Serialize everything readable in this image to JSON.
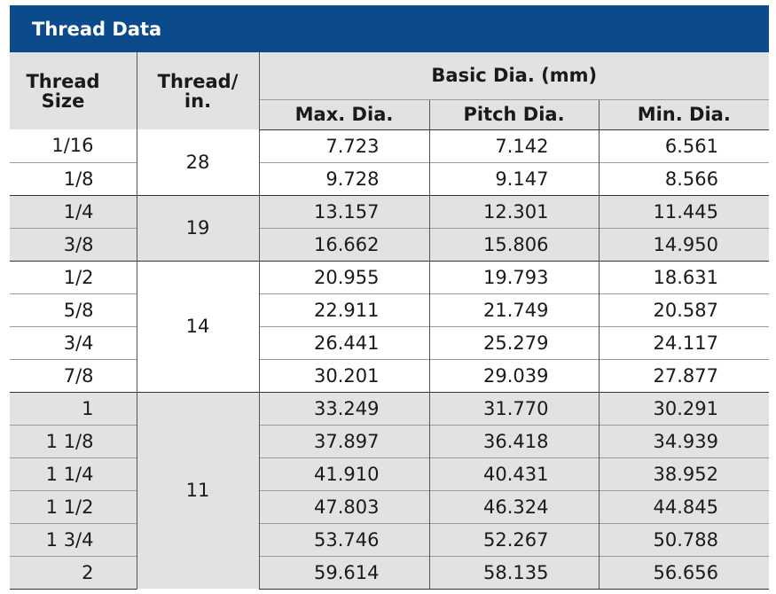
{
  "title": "Thread Data",
  "headers": {
    "thread_size": "Thread Size",
    "thread_per_in": "Thread/ in.",
    "basic_dia": "Basic Dia. (mm)",
    "max_dia": "Max. Dia.",
    "pitch_dia": "Pitch Dia.",
    "min_dia": "Min. Dia."
  },
  "groups": [
    {
      "tpi": "28",
      "rows": [
        {
          "size": "1/16",
          "max": "7.723",
          "pitch": "7.142",
          "min": "6.561"
        },
        {
          "size": "1/8",
          "max": "9.728",
          "pitch": "9.147",
          "min": "8.566"
        }
      ]
    },
    {
      "tpi": "19",
      "rows": [
        {
          "size": "1/4",
          "max": "13.157",
          "pitch": "12.301",
          "min": "11.445"
        },
        {
          "size": "3/8",
          "max": "16.662",
          "pitch": "15.806",
          "min": "14.950"
        }
      ]
    },
    {
      "tpi": "14",
      "rows": [
        {
          "size": "1/2",
          "max": "20.955",
          "pitch": "19.793",
          "min": "18.631"
        },
        {
          "size": "5/8",
          "max": "22.911",
          "pitch": "21.749",
          "min": "20.587"
        },
        {
          "size": "3/4",
          "max": "26.441",
          "pitch": "25.279",
          "min": "24.117"
        },
        {
          "size": "7/8",
          "max": "30.201",
          "pitch": "29.039",
          "min": "27.877"
        }
      ]
    },
    {
      "tpi": "11",
      "rows": [
        {
          "size": "1",
          "max": "33.249",
          "pitch": "31.770",
          "min": "30.291"
        },
        {
          "size": "1 1/8",
          "max": "37.897",
          "pitch": "36.418",
          "min": "34.939"
        },
        {
          "size": "1 1/4",
          "max": "41.910",
          "pitch": "40.431",
          "min": "38.952"
        },
        {
          "size": "1 1/2",
          "max": "47.803",
          "pitch": "46.324",
          "min": "44.845"
        },
        {
          "size": "1 3/4",
          "max": "53.746",
          "pitch": "52.267",
          "min": "50.788"
        },
        {
          "size": "2",
          "max": "59.614",
          "pitch": "58.135",
          "min": "56.656"
        }
      ]
    }
  ],
  "colors": {
    "title_bg": "#0b4a8b",
    "shade": "#e2e2e2"
  }
}
